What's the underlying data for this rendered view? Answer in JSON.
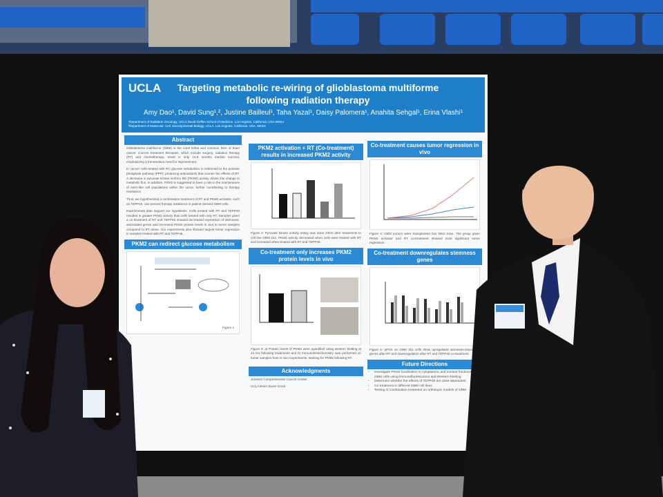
{
  "poster": {
    "logo": "UCLA",
    "title": "Targeting metabolic re-wiring of glioblastoma multiforme following radiation therapy",
    "authors": "Amy Dao¹, David Sung¹,², Justine Bailleul¹, Taha Yazal¹, Daisy Palomera¹, Anahita Sehgal¹, Erina Vlashi¹",
    "affiliations": [
      "¹Department of Radiation Oncology, UCLA David Geffen School of Medicine, Los Angeles, California, USA 90024",
      "²Department of Molecular, Cell, Developmental Biology, UCLA, Los Angeles, California, USA, 90024"
    ],
    "abstract": {
      "heading": "Abstract",
      "paragraphs": [
        "Glioblastoma multiforme (GBM) is the most lethal and common form of brain cancer. Current treatment therapies, which include surgery, radiation therapy (RT) and chemotherapy, result in only 14.6 months median survival, emphasizing a tremendous need for improvement.",
        "In cancer cells treated with RT, glucose metabolism is redirected to the pentose phosphate pathway (PPP), producing antioxidants that counter the effects of RT. A decrease in pyruvate kinase isoform M2 (PKM2) activity drives this change in metabolic flux. In addition, PKM2 is suggested to have a role in the maintenance of stem-like cell populations within the tumor, further contributing to therapy resistance.",
        "Thus, we hypothesized a combination treatment of RT and PKM2 activator, such as TEPP46, can prevent therapy resistance in patient-derived GBM cells.",
        "Experimental data support our hypothesis. Cells treated with RT and TEPP46 resulted in greater PKM2 activity than cells treated with only RT. Samples given a co-treatment of RT and TEPP46 showed decreased expression of stemness-associated genes and increased PKM2 protein levels in vivo in tumor samples compared to RT alone. Our experiments also showed largest tumor regression in samples treated with RT and TEPP46."
      ]
    },
    "sections": [
      {
        "heading": "PKM2 can redirect glucose metabolism",
        "caption": "Figure 1"
      },
      {
        "heading": "PKM2 activation + RT (Co-treatment) results in increased PKM2 activity",
        "caption": "Figure 2: Pyruvate kinase activity assay was done 24hrs after treatments to cell line GBM 151. PKM2 activity decreased when cells were treated with RT and increased when treated with RT and TEPP46."
      },
      {
        "heading": "Co-treatment only increases PKM2 protein levels in vivo",
        "caption": "Figure 3: a) Protein levels of PKM2 were quantified using western blotting at 24 hrs following treatments and b) Immunohistochemistry was performed on tumor samples from in vivo experiments, staining for PKM2 following RT."
      },
      {
        "heading": "Co-treatment causes tumor regression in vivo",
        "caption": "Figure 4: GBM tumors were transplanted into NSG mice. The group given PKM2 activator and RT co-treatment showed most significant tumor regression."
      },
      {
        "heading": "Co-treatment downregulates stemness genes",
        "caption": "Figure 5: qPCR on GBM 151 cells show upregulated stemness-associated genes after RT and downregulation after RT and TEPP46 co-treatment."
      }
    ],
    "acknowledgments": {
      "heading": "Acknowledgments",
      "items": [
        "Jonsson Comprehensive Cancer Center",
        "UCLA Brain Spore Grant"
      ]
    },
    "future": {
      "heading": "Future Directions",
      "items": [
        "Investigate PKM2 localization in cytoplasmic and nuclear fractions of GBM cells using immunofluorescence and Western blotting",
        "Determine whether the effects of TEPP46 are dose-dependent",
        "Co-treatment in different GBM cell lines",
        "Testing of combination treatment on orthotopic models of GBM"
      ]
    }
  }
}
